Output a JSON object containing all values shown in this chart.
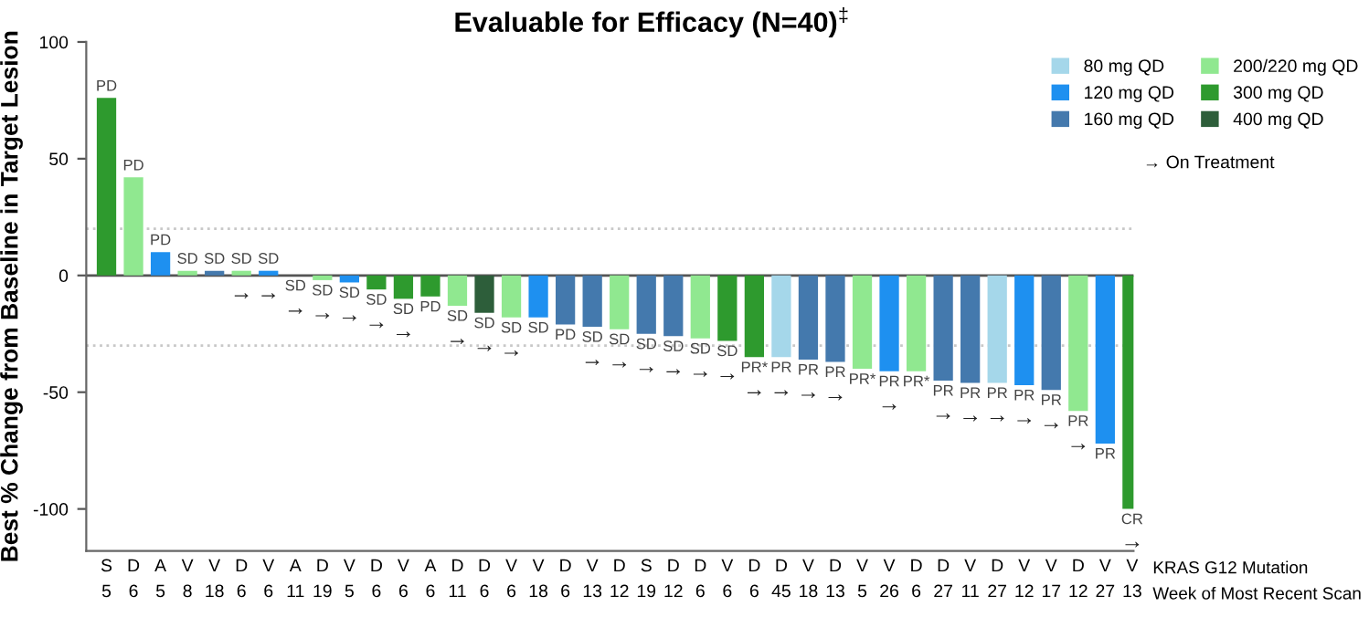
{
  "chart_data": {
    "type": "bar",
    "title": "Evaluable for Efficacy (N=40)$^{‡}$",
    "ylabel": "Best % Change from Baseline in Target Lesion",
    "categories": [
      "S\n5",
      "D\n6",
      "A\n5",
      "V\n8",
      "V\n18",
      "D\n6",
      "V\n6",
      "A\n11",
      "D\n19",
      "V\n5",
      "D\n6",
      "V\n6",
      "A\n6",
      "D\n11",
      "D\n6",
      "V\n6",
      "V\n18",
      "D\n6",
      "V\n13",
      "D\n12",
      "S\n19",
      "D\n12",
      "D\n6",
      "V\n6",
      "D\n6",
      "D\n45",
      "V\n18",
      "D\n13",
      "V\n5",
      "V\n26",
      "D\n6",
      "D\n27",
      "V\n11",
      "D\n27",
      "V\n12",
      "V\n17",
      "D\n12",
      "V\n27",
      "V\n13"
    ],
    "series": [
      {
        "name": "80 mg QD",
        "color": "#a5d7ea",
        "values": [
          null,
          null,
          null,
          null,
          null,
          null,
          null,
          null,
          null,
          null,
          null,
          null,
          null,
          null,
          null,
          null,
          null,
          null,
          null,
          null,
          null,
          null,
          null,
          null,
          null,
          -35,
          null,
          null,
          null,
          null,
          null,
          null,
          null,
          -46,
          null,
          null,
          null,
          null,
          null
        ]
      },
      {
        "name": "120 mg QD",
        "color": "#1e90f0",
        "values": [
          null,
          null,
          10,
          null,
          null,
          null,
          2,
          null,
          null,
          -3,
          null,
          null,
          null,
          null,
          null,
          null,
          -18,
          null,
          null,
          null,
          null,
          null,
          null,
          null,
          null,
          null,
          null,
          null,
          null,
          -41,
          null,
          null,
          null,
          null,
          -47,
          null,
          null,
          -72,
          null
        ]
      },
      {
        "name": "160 mg QD",
        "color": "#4479ad",
        "values": [
          null,
          null,
          null,
          null,
          2,
          null,
          null,
          null,
          null,
          null,
          null,
          null,
          null,
          null,
          null,
          null,
          null,
          -21,
          -22,
          null,
          -25,
          -26,
          null,
          null,
          null,
          null,
          -36,
          -37,
          null,
          null,
          null,
          -45,
          -46,
          null,
          null,
          -49,
          null,
          null,
          null
        ]
      },
      {
        "name": "200/220 mg QD",
        "color": "#90e890",
        "values": [
          null,
          42,
          null,
          2,
          null,
          2,
          null,
          0,
          -2,
          null,
          null,
          null,
          null,
          -13,
          null,
          -18,
          null,
          null,
          null,
          -23,
          null,
          null,
          -27,
          null,
          null,
          null,
          null,
          null,
          -40,
          null,
          -41,
          null,
          null,
          null,
          null,
          null,
          -58,
          null,
          null
        ]
      },
      {
        "name": "300 mg QD",
        "color": "#2e9a2e",
        "values": [
          76,
          null,
          null,
          null,
          null,
          null,
          null,
          null,
          null,
          null,
          -6,
          -10,
          -9,
          null,
          null,
          null,
          null,
          null,
          null,
          null,
          null,
          null,
          null,
          -28,
          -35,
          null,
          null,
          null,
          null,
          null,
          null,
          null,
          null,
          null,
          null,
          null,
          null,
          null,
          -100
        ]
      },
      {
        "name": "400 mg QD",
        "color": "#2d5e3a",
        "values": [
          null,
          null,
          null,
          null,
          null,
          null,
          null,
          null,
          null,
          null,
          null,
          null,
          null,
          null,
          -16,
          null,
          null,
          null,
          null,
          null,
          null,
          null,
          null,
          null,
          null,
          null,
          null,
          null,
          null,
          null,
          null,
          null,
          null,
          null,
          null,
          null,
          null,
          null,
          null
        ]
      }
    ],
    "value_labels": [
      "PD",
      "PD",
      "PD",
      "SD",
      "SD",
      "SD\n→",
      "SD\n→",
      "SD\n→",
      "SD\n→",
      "SD\n→",
      "SD\n→",
      "SD\n→",
      "PD",
      "SD\n→",
      "SD\n→",
      "SD\n→",
      "SD",
      "PD",
      "SD\n→",
      "SD\n→",
      "SD\n→",
      "SD\n→",
      "SD\n→",
      "SD\n→",
      "PR*\n→",
      "PR\n→",
      "PR\n→",
      "PR\n→",
      "PR*",
      "PR\n→",
      "PR*",
      "PR\n→",
      "PR\n→",
      "PR\n→",
      "PR\n→",
      "PR\n→",
      "PR\n→",
      "PR",
      "CR\n→"
    ],
    "ylim": [
      -118,
      100
    ],
    "yticks": [
      -100,
      -50,
      0,
      50,
      100
    ],
    "ref_lines": [
      {
        "axis": "y",
        "value": 20,
        "color": "#c8c8c8",
        "line_style": "dotted"
      },
      {
        "axis": "y",
        "value": -30,
        "color": "#c8c8c8",
        "line_style": "dotted"
      },
      {
        "axis": "y",
        "value": 0,
        "color": "#555555",
        "line_style": "solid"
      }
    ],
    "annotations": [
      "KRAS G12 Mutation",
      "Week of Most Recent Scan",
      "→ On Treatment"
    ],
    "legend": "top right",
    "grid": false
  }
}
